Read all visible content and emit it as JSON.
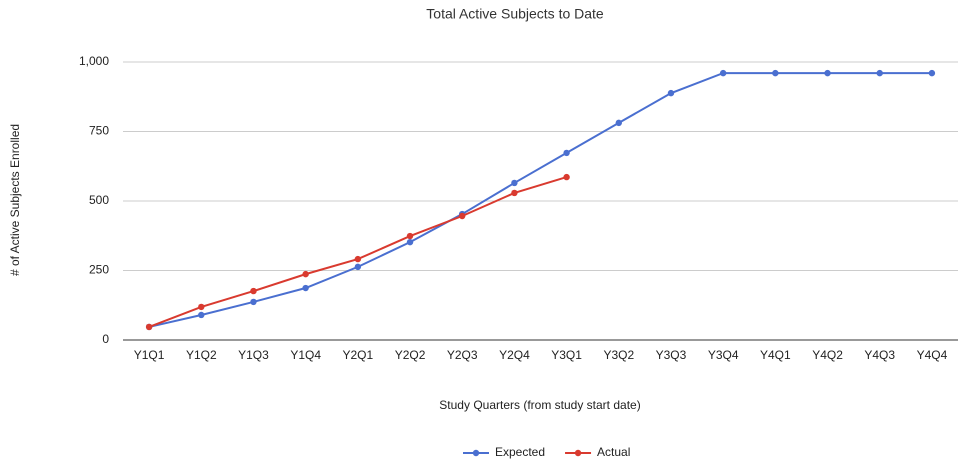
{
  "chart_data": {
    "type": "line",
    "title": "Total Active Subjects to Date",
    "x_label": "Study Quarters (from study start date)",
    "y_label": "# of Active Subjects Enrolled",
    "categories": [
      "Y1Q1",
      "Y1Q2",
      "Y1Q3",
      "Y1Q4",
      "Y2Q1",
      "Y2Q2",
      "Y2Q3",
      "Y2Q4",
      "Y3Q1",
      "Y3Q2",
      "Y3Q3",
      "Y3Q4",
      "Y4Q1",
      "Y4Q2",
      "Y4Q3",
      "Y4Q4"
    ],
    "series": [
      {
        "name": "Expected",
        "color": "#4a6fd0",
        "values": [
          47,
          90,
          137,
          187,
          263,
          352,
          453,
          565,
          673,
          781,
          888,
          960,
          960,
          960,
          960,
          960
        ]
      },
      {
        "name": "Actual",
        "color": "#d93a2f",
        "values": [
          47,
          119,
          176,
          237,
          291,
          374,
          446,
          529,
          586,
          null,
          null,
          null,
          null,
          null,
          null,
          null
        ]
      }
    ],
    "ylim": [
      0,
      1000
    ],
    "yticks": [
      0,
      250,
      500,
      750,
      {
        "value": 1000,
        "label": "1,000"
      }
    ],
    "grid": true,
    "legend": "bottom"
  }
}
